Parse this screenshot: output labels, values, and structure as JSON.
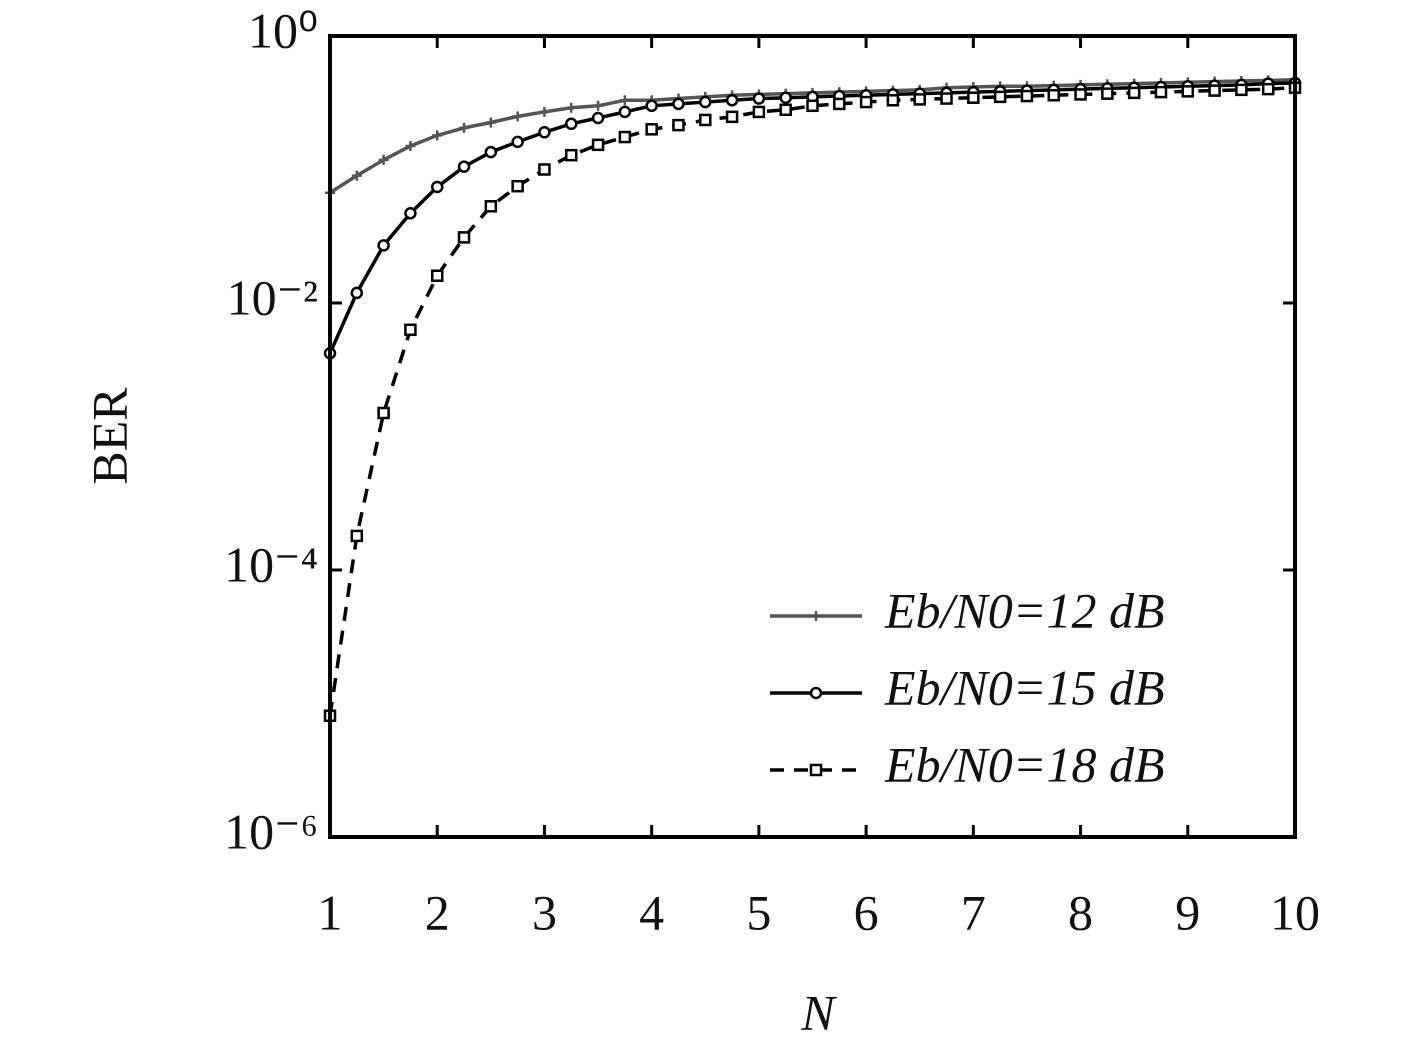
{
  "chart_data": {
    "type": "line",
    "xlabel": "N",
    "ylabel": "BER",
    "x": [
      1,
      1.25,
      1.5,
      1.75,
      2,
      2.25,
      2.5,
      2.75,
      3,
      3.25,
      3.5,
      3.75,
      4,
      4.25,
      4.5,
      4.75,
      5,
      5.25,
      5.5,
      5.75,
      6,
      6.25,
      6.5,
      6.75,
      7,
      7.25,
      7.5,
      7.75,
      8,
      8.25,
      8.5,
      8.75,
      9,
      9.25,
      9.5,
      9.75,
      10
    ],
    "xlim": [
      1,
      10
    ],
    "xticks": [
      1,
      2,
      3,
      4,
      5,
      6,
      7,
      8,
      9,
      10
    ],
    "ylim": [
      1e-06,
      1
    ],
    "yscale": "log",
    "yticks": [
      {
        "value": 1e-06,
        "label": "10⁻⁶"
      },
      {
        "value": 0.0001,
        "label": "10⁻⁴"
      },
      {
        "value": 0.01,
        "label": "10⁻²"
      },
      {
        "value": 1,
        "label": "10⁰"
      }
    ],
    "grid": false,
    "legend": "lower right",
    "series": [
      {
        "name": "Eb/N0=12 dB",
        "color": "#555555",
        "marker": "plus",
        "linestyle": "solid",
        "values": [
          0.067,
          0.09,
          0.118,
          0.15,
          0.18,
          0.205,
          0.225,
          0.25,
          0.27,
          0.29,
          0.3,
          0.33,
          0.33,
          0.34,
          0.35,
          0.36,
          0.365,
          0.37,
          0.375,
          0.38,
          0.385,
          0.39,
          0.395,
          0.41,
          0.415,
          0.42,
          0.42,
          0.425,
          0.43,
          0.435,
          0.44,
          0.445,
          0.45,
          0.455,
          0.46,
          0.465,
          0.47
        ]
      },
      {
        "name": "Eb/N0=15 dB",
        "color": "#000000",
        "marker": "circle",
        "linestyle": "solid",
        "values": [
          0.0042,
          0.0119,
          0.027,
          0.047,
          0.074,
          0.105,
          0.135,
          0.161,
          0.19,
          0.22,
          0.243,
          0.27,
          0.3,
          0.31,
          0.32,
          0.33,
          0.34,
          0.345,
          0.35,
          0.355,
          0.36,
          0.365,
          0.37,
          0.375,
          0.38,
          0.385,
          0.39,
          0.395,
          0.4,
          0.405,
          0.41,
          0.415,
          0.42,
          0.425,
          0.43,
          0.44,
          0.445
        ]
      },
      {
        "name": "Eb/N0=18 dB",
        "color": "#000000",
        "marker": "square",
        "linestyle": "dashed",
        "values": [
          8.1e-06,
          0.00018,
          0.0015,
          0.0063,
          0.016,
          0.031,
          0.053,
          0.075,
          0.1,
          0.128,
          0.153,
          0.175,
          0.2,
          0.215,
          0.235,
          0.248,
          0.27,
          0.28,
          0.3,
          0.31,
          0.32,
          0.33,
          0.335,
          0.34,
          0.345,
          0.35,
          0.355,
          0.36,
          0.365,
          0.37,
          0.375,
          0.38,
          0.385,
          0.39,
          0.395,
          0.4,
          0.41
        ]
      }
    ]
  }
}
